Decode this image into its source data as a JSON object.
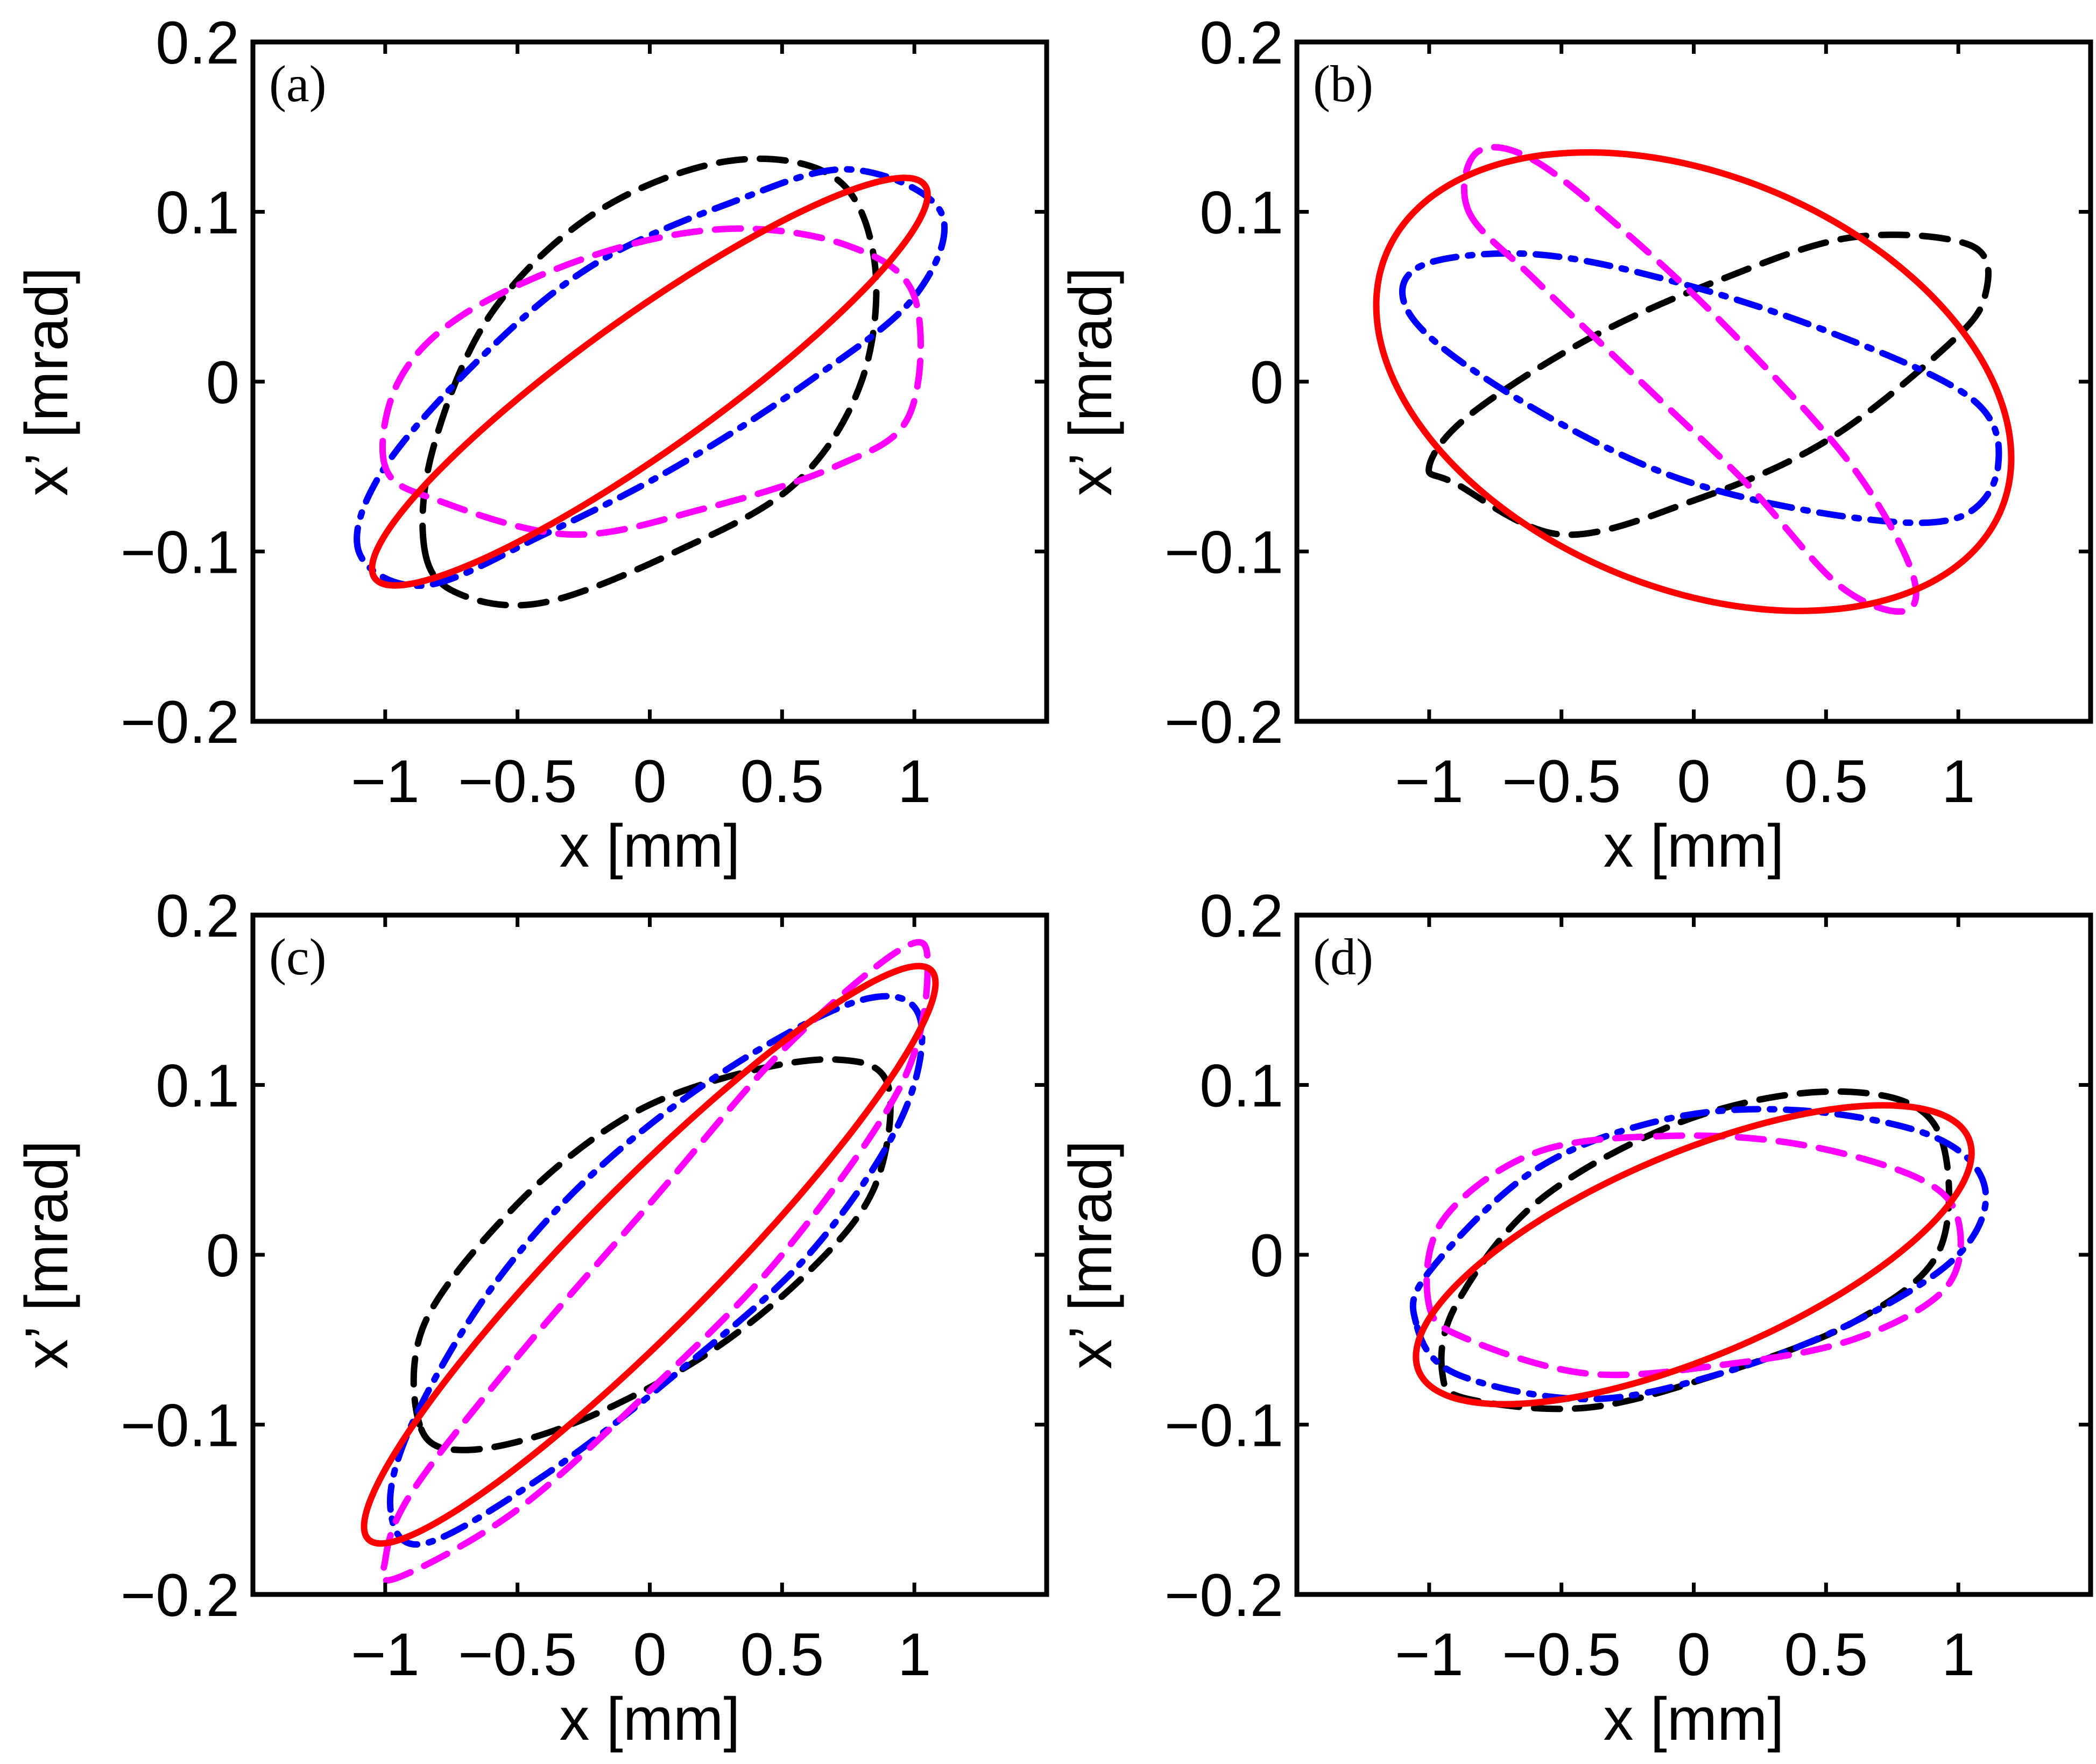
{
  "chart_data": [
    {
      "type": "line",
      "panel_label": "(a)",
      "xlabel": "x [mm]",
      "ylabel": "x’ [mrad]",
      "xlim": [
        -1.5,
        1.5
      ],
      "ylim": [
        -0.2,
        0.2
      ],
      "xticks": [
        -1,
        -0.5,
        0,
        0.5,
        1
      ],
      "xtick_labels": [
        "−1",
        "−0.5",
        "0",
        "0.5",
        "1"
      ],
      "yticks": [
        -0.2,
        -0.1,
        0,
        0.1,
        0.2
      ],
      "ytick_labels": [
        "−0.2",
        "−0.1",
        "0",
        "0.1",
        "0.2"
      ],
      "series": [
        {
          "name": "black-dashed",
          "color": "#000000",
          "style": "dashed",
          "points": [
            [
              -0.85,
              -0.1
            ],
            [
              -0.82,
              -0.04
            ],
            [
              -0.6,
              0.04
            ],
            [
              -0.2,
              0.1
            ],
            [
              0.3,
              0.13
            ],
            [
              0.7,
              0.12
            ],
            [
              0.85,
              0.07
            ],
            [
              0.8,
              0.0
            ],
            [
              0.55,
              -0.06
            ],
            [
              0.1,
              -0.1
            ],
            [
              -0.4,
              -0.13
            ],
            [
              -0.72,
              -0.125
            ],
            [
              -0.85,
              -0.1
            ]
          ]
        },
        {
          "name": "blue-dashdot",
          "color": "#0000ff",
          "style": "dashdot",
          "points": [
            [
              -1.1,
              -0.1
            ],
            [
              -1.0,
              -0.05
            ],
            [
              -0.6,
              0.02
            ],
            [
              -0.2,
              0.07
            ],
            [
              0.3,
              0.105
            ],
            [
              0.75,
              0.125
            ],
            [
              1.1,
              0.1
            ],
            [
              1.0,
              0.05
            ],
            [
              0.6,
              0.0
            ],
            [
              0.1,
              -0.05
            ],
            [
              -0.4,
              -0.09
            ],
            [
              -0.85,
              -0.12
            ],
            [
              -1.1,
              -0.1
            ]
          ]
        },
        {
          "name": "magenta-dashed",
          "color": "#ff00ff",
          "style": "dashed",
          "points": [
            [
              -1.0,
              -0.05
            ],
            [
              -0.95,
              0.0
            ],
            [
              -0.7,
              0.04
            ],
            [
              -0.2,
              0.075
            ],
            [
              0.3,
              0.09
            ],
            [
              0.75,
              0.08
            ],
            [
              1.0,
              0.05
            ],
            [
              0.98,
              -0.02
            ],
            [
              0.7,
              -0.05
            ],
            [
              0.2,
              -0.075
            ],
            [
              -0.3,
              -0.09
            ],
            [
              -0.8,
              -0.07
            ],
            [
              -1.0,
              -0.05
            ]
          ]
        },
        {
          "name": "red-solid",
          "color": "#ff0000",
          "style": "solid",
          "ellipse": {
            "cx": 0,
            "cy": 0,
            "x_extent": 1.05,
            "cov": 0.11,
            "y_extent": 0.12
          }
        }
      ]
    },
    {
      "type": "line",
      "panel_label": "(b)",
      "xlabel": "x [mm]",
      "ylabel": "x’ [mrad]",
      "xlim": [
        -1.5,
        1.5
      ],
      "ylim": [
        -0.2,
        0.2
      ],
      "xticks": [
        -1,
        -0.5,
        0,
        0.5,
        1
      ],
      "xtick_labels": [
        "−1",
        "−0.5",
        "0",
        "0.5",
        "1"
      ],
      "yticks": [
        -0.2,
        -0.1,
        0,
        0.1,
        0.2
      ],
      "ytick_labels": [
        "−0.2",
        "−0.1",
        "0",
        "0.1",
        "0.2"
      ],
      "series": [
        {
          "name": "black-dashed",
          "color": "#000000",
          "style": "dashed",
          "points": [
            [
              -1.0,
              -0.05
            ],
            [
              -0.9,
              -0.06
            ],
            [
              -0.5,
              -0.09
            ],
            [
              0.0,
              -0.07
            ],
            [
              0.5,
              -0.035
            ],
            [
              0.95,
              0.02
            ],
            [
              1.1,
              0.05
            ],
            [
              1.05,
              0.08
            ],
            [
              0.6,
              0.085
            ],
            [
              0.1,
              0.06
            ],
            [
              -0.4,
              0.025
            ],
            [
              -0.85,
              -0.02
            ],
            [
              -1.0,
              -0.05
            ]
          ]
        },
        {
          "name": "blue-dashdot",
          "color": "#0000ff",
          "style": "dashdot",
          "points": [
            [
              -1.1,
              0.05
            ],
            [
              -1.0,
              0.07
            ],
            [
              -0.6,
              0.075
            ],
            [
              -0.1,
              0.06
            ],
            [
              0.5,
              0.03
            ],
            [
              1.05,
              -0.01
            ],
            [
              1.15,
              -0.05
            ],
            [
              1.0,
              -0.08
            ],
            [
              0.6,
              -0.08
            ],
            [
              0.0,
              -0.06
            ],
            [
              -0.5,
              -0.025
            ],
            [
              -0.95,
              0.02
            ],
            [
              -1.1,
              0.05
            ]
          ]
        },
        {
          "name": "magenta-dashed",
          "color": "#ff00ff",
          "style": "dashed",
          "points": [
            [
              -0.85,
              0.1
            ],
            [
              -0.82,
              0.135
            ],
            [
              -0.6,
              0.13
            ],
            [
              -0.2,
              0.08
            ],
            [
              0.2,
              0.02
            ],
            [
              0.6,
              -0.05
            ],
            [
              0.82,
              -0.11
            ],
            [
              0.8,
              -0.135
            ],
            [
              0.55,
              -0.12
            ],
            [
              0.2,
              -0.06
            ],
            [
              -0.2,
              0.0
            ],
            [
              -0.6,
              0.06
            ],
            [
              -0.85,
              0.1
            ]
          ]
        },
        {
          "name": "red-solid",
          "color": "#ff0000",
          "style": "solid",
          "ellipse": {
            "cx": 0,
            "cy": 0,
            "x_extent": 1.2,
            "cov": -0.045,
            "y_extent": 0.135
          }
        }
      ]
    },
    {
      "type": "line",
      "panel_label": "(c)",
      "xlabel": "x [mm]",
      "ylabel": "x’ [mrad]",
      "xlim": [
        -1.5,
        1.5
      ],
      "ylim": [
        -0.2,
        0.2
      ],
      "xticks": [
        -1,
        -0.5,
        0,
        0.5,
        1
      ],
      "xtick_labels": [
        "−1",
        "−0.5",
        "0",
        "0.5",
        "1"
      ],
      "yticks": [
        -0.2,
        -0.1,
        0,
        0.1,
        0.2
      ],
      "ytick_labels": [
        "−0.2",
        "−0.1",
        "0",
        "0.1",
        "0.2"
      ],
      "series": [
        {
          "name": "black-dashed",
          "color": "#000000",
          "style": "dashed",
          "points": [
            [
              -0.87,
              -0.1
            ],
            [
              -0.85,
              -0.04
            ],
            [
              -0.5,
              0.03
            ],
            [
              -0.1,
              0.08
            ],
            [
              0.3,
              0.105
            ],
            [
              0.7,
              0.115
            ],
            [
              0.9,
              0.1
            ],
            [
              0.85,
              0.04
            ],
            [
              0.6,
              -0.01
            ],
            [
              0.2,
              -0.06
            ],
            [
              -0.3,
              -0.1
            ],
            [
              -0.7,
              -0.115
            ],
            [
              -0.87,
              -0.1
            ]
          ]
        },
        {
          "name": "blue-dashdot",
          "color": "#0000ff",
          "style": "dashdot",
          "points": [
            [
              -0.98,
              -0.15
            ],
            [
              -0.9,
              -0.1
            ],
            [
              -0.6,
              -0.02
            ],
            [
              -0.2,
              0.05
            ],
            [
              0.3,
              0.11
            ],
            [
              0.8,
              0.15
            ],
            [
              1.02,
              0.14
            ],
            [
              0.95,
              0.08
            ],
            [
              0.6,
              0.0
            ],
            [
              0.1,
              -0.07
            ],
            [
              -0.4,
              -0.13
            ],
            [
              -0.85,
              -0.17
            ],
            [
              -0.98,
              -0.15
            ]
          ]
        },
        {
          "name": "magenta-dashed",
          "color": "#ff00ff",
          "style": "dashed",
          "points": [
            [
              -1.0,
              -0.18
            ],
            [
              -0.9,
              -0.14
            ],
            [
              -0.5,
              -0.06
            ],
            [
              0.0,
              0.03
            ],
            [
              0.5,
              0.12
            ],
            [
              0.95,
              0.18
            ],
            [
              1.05,
              0.17
            ],
            [
              0.95,
              0.1
            ],
            [
              0.5,
              0.0
            ],
            [
              0.0,
              -0.08
            ],
            [
              -0.5,
              -0.15
            ],
            [
              -0.95,
              -0.19
            ],
            [
              -1.0,
              -0.18
            ]
          ]
        },
        {
          "name": "red-solid",
          "color": "#ff0000",
          "style": "solid",
          "ellipse": {
            "cx": 0,
            "cy": 0,
            "x_extent": 1.08,
            "cov": 0.16,
            "y_extent": 0.17
          }
        }
      ]
    },
    {
      "type": "line",
      "panel_label": "(d)",
      "xlabel": "x [mm]",
      "ylabel": "x’ [mrad]",
      "xlim": [
        -1.5,
        1.5
      ],
      "ylim": [
        -0.2,
        0.2
      ],
      "xticks": [
        -1,
        -0.5,
        0,
        0.5,
        1
      ],
      "xtick_labels": [
        "−1",
        "−0.5",
        "0",
        "0.5",
        "1"
      ],
      "yticks": [
        -0.2,
        -0.1,
        0,
        0.1,
        0.2
      ],
      "ytick_labels": [
        "−0.2",
        "−0.1",
        "0",
        "0.1",
        "0.2"
      ],
      "series": [
        {
          "name": "black-dashed",
          "color": "#000000",
          "style": "dashed",
          "points": [
            [
              -0.95,
              -0.07
            ],
            [
              -0.9,
              -0.03
            ],
            [
              -0.6,
              0.03
            ],
            [
              -0.1,
              0.075
            ],
            [
              0.4,
              0.095
            ],
            [
              0.8,
              0.09
            ],
            [
              0.95,
              0.06
            ],
            [
              0.92,
              0.0
            ],
            [
              0.6,
              -0.04
            ],
            [
              0.1,
              -0.07
            ],
            [
              -0.4,
              -0.09
            ],
            [
              -0.85,
              -0.085
            ],
            [
              -0.95,
              -0.07
            ]
          ]
        },
        {
          "name": "blue-dashdot",
          "color": "#0000ff",
          "style": "dashdot",
          "points": [
            [
              -1.05,
              -0.04
            ],
            [
              -1.0,
              -0.01
            ],
            [
              -0.6,
              0.05
            ],
            [
              -0.1,
              0.08
            ],
            [
              0.4,
              0.085
            ],
            [
              0.9,
              0.07
            ],
            [
              1.1,
              0.04
            ],
            [
              1.0,
              0.0
            ],
            [
              0.6,
              -0.04
            ],
            [
              0.1,
              -0.07
            ],
            [
              -0.4,
              -0.085
            ],
            [
              -0.9,
              -0.07
            ],
            [
              -1.05,
              -0.04
            ]
          ]
        },
        {
          "name": "magenta-dashed",
          "color": "#ff00ff",
          "style": "dashed",
          "points": [
            [
              -1.0,
              -0.03
            ],
            [
              -0.95,
              0.02
            ],
            [
              -0.6,
              0.06
            ],
            [
              -0.1,
              0.07
            ],
            [
              0.4,
              0.065
            ],
            [
              0.85,
              0.045
            ],
            [
              1.0,
              0.02
            ],
            [
              0.95,
              -0.02
            ],
            [
              0.6,
              -0.05
            ],
            [
              0.1,
              -0.065
            ],
            [
              -0.4,
              -0.07
            ],
            [
              -0.85,
              -0.05
            ],
            [
              -1.0,
              -0.03
            ]
          ]
        },
        {
          "name": "red-solid",
          "color": "#ff0000",
          "style": "solid",
          "ellipse": {
            "cx": 0,
            "cy": 0,
            "x_extent": 1.05,
            "cov": 0.06,
            "y_extent": 0.088
          }
        }
      ]
    }
  ]
}
